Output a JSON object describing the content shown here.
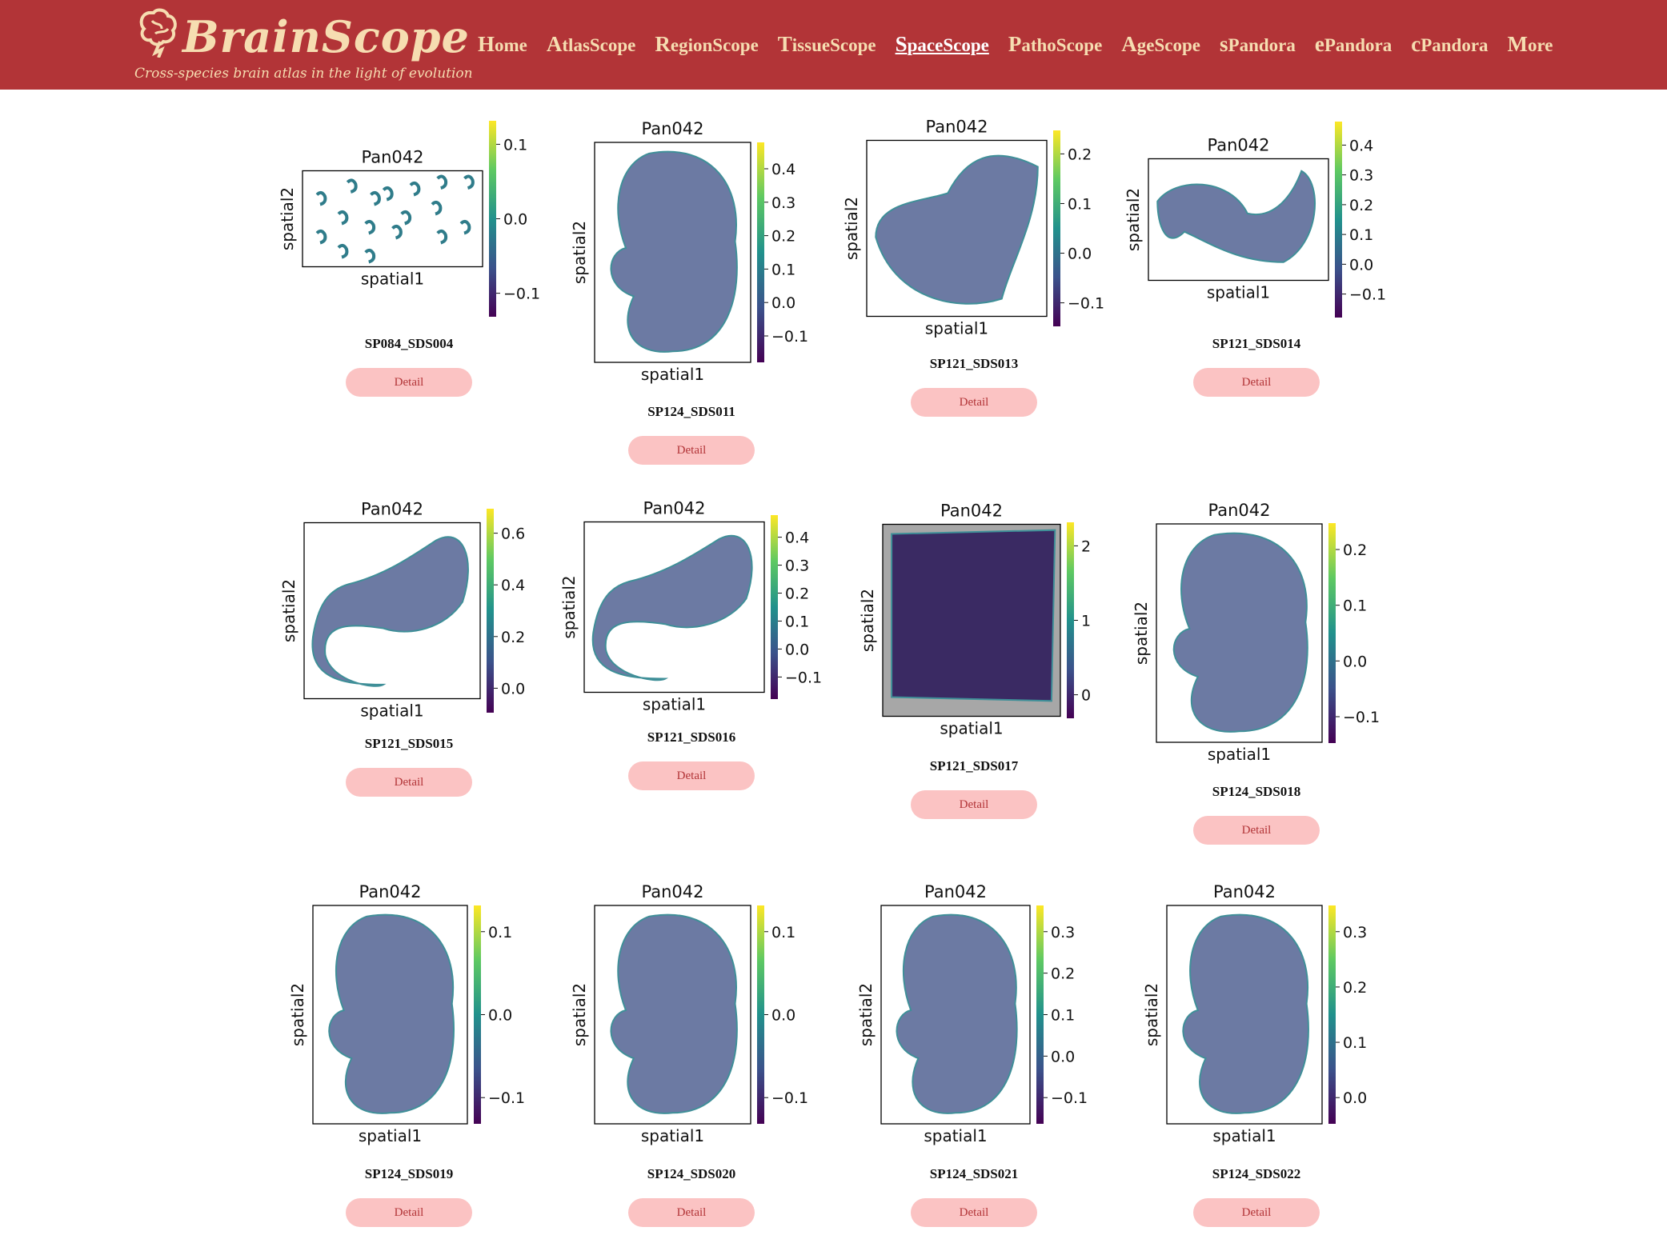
{
  "header": {
    "brand_name": "BrainScope",
    "tagline": "Cross-species brain atlas in the light of evolution",
    "nav": [
      {
        "first": "H",
        "rest": "ome",
        "active": false
      },
      {
        "first": "A",
        "rest": "tlasScope",
        "active": false
      },
      {
        "first": "R",
        "rest": "egionScope",
        "active": false
      },
      {
        "first": "T",
        "rest": "issueScope",
        "active": false
      },
      {
        "first": "S",
        "rest": "paceScope",
        "active": true
      },
      {
        "first": "P",
        "rest": "athoScope",
        "active": false
      },
      {
        "first": "A",
        "rest": "geScope",
        "active": false
      },
      {
        "first": "s",
        "rest": "Pandora",
        "active": false
      },
      {
        "first": "e",
        "rest": "Pandora",
        "active": false
      },
      {
        "first": "c",
        "rest": "Pandora",
        "active": false
      },
      {
        "first": "M",
        "rest": "ore",
        "active": false
      }
    ]
  },
  "colors": {
    "header_bg": "#b23437",
    "brand_text": "#f6ddb1",
    "button_bg": "#fbc3c3",
    "button_text": "#b23437"
  },
  "detail_label": "Detail",
  "cards": [
    {
      "id": "SP084_SDS004",
      "plot_title": "Pan042",
      "xlabel": "spatial1",
      "ylabel": "spatial2",
      "ticks": [
        "0.1",
        "0.0",
        "−0.1"
      ],
      "shape": "sections"
    },
    {
      "id": "SP124_SDS011",
      "plot_title": "Pan042",
      "xlabel": "spatial1",
      "ylabel": "spatial2",
      "ticks": [
        "0.4",
        "0.3",
        "0.2",
        "0.1",
        "0.0",
        "−0.1"
      ],
      "shape": "embryo"
    },
    {
      "id": "SP121_SDS013",
      "plot_title": "Pan042",
      "xlabel": "spatial1",
      "ylabel": "spatial2",
      "ticks": [
        "0.2",
        "0.1",
        "0.0",
        "−0.1"
      ],
      "shape": "blob"
    },
    {
      "id": "SP121_SDS014",
      "plot_title": "Pan042",
      "xlabel": "spatial1",
      "ylabel": "spatial2",
      "ticks": [
        "0.4",
        "0.3",
        "0.2",
        "0.1",
        "0.0",
        "−0.1"
      ],
      "shape": "flat"
    },
    {
      "id": "SP121_SDS015",
      "plot_title": "Pan042",
      "xlabel": "spatial1",
      "ylabel": "spatial2",
      "ticks": [
        "0.6",
        "0.4",
        "0.2",
        "0.0"
      ],
      "shape": "curl"
    },
    {
      "id": "SP121_SDS016",
      "plot_title": "Pan042",
      "xlabel": "spatial1",
      "ylabel": "spatial2",
      "ticks": [
        "0.4",
        "0.3",
        "0.2",
        "0.1",
        "0.0",
        "−0.1"
      ],
      "shape": "curl2"
    },
    {
      "id": "SP121_SDS017",
      "plot_title": "Pan042",
      "xlabel": "spatial1",
      "ylabel": "spatial2",
      "ticks": [
        "2",
        "1",
        "0"
      ],
      "shape": "square"
    },
    {
      "id": "SP124_SDS018",
      "plot_title": "Pan042",
      "xlabel": "spatial1",
      "ylabel": "spatial2",
      "ticks": [
        "0.2",
        "0.1",
        "0.0",
        "−0.1"
      ],
      "shape": "embryo"
    },
    {
      "id": "SP124_SDS019",
      "plot_title": "Pan042",
      "xlabel": "spatial1",
      "ylabel": "spatial2",
      "ticks": [
        "0.1",
        "0.0",
        "−0.1"
      ],
      "shape": "embryo"
    },
    {
      "id": "SP124_SDS020",
      "plot_title": "Pan042",
      "xlabel": "spatial1",
      "ylabel": "spatial2",
      "ticks": [
        "0.1",
        "0.0",
        "−0.1"
      ],
      "shape": "embryo"
    },
    {
      "id": "SP124_SDS021",
      "plot_title": "Pan042",
      "xlabel": "spatial1",
      "ylabel": "spatial2",
      "ticks": [
        "0.3",
        "0.2",
        "0.1",
        "0.0",
        "−0.1"
      ],
      "shape": "embryo"
    },
    {
      "id": "SP124_SDS022",
      "plot_title": "Pan042",
      "xlabel": "spatial1",
      "ylabel": "spatial2",
      "ticks": [
        "0.3",
        "0.2",
        "0.1",
        "0.0"
      ],
      "shape": "embryo"
    }
  ]
}
